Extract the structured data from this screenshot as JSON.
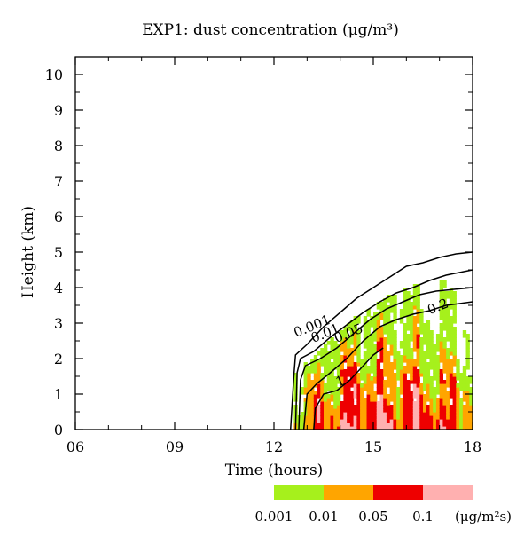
{
  "chart_data": {
    "type": "heatmap",
    "title": "EXP1: dust concentration (μg/m³)",
    "xlabel": "Time (hours)",
    "ylabel": "Height (km)",
    "xlim": [
      6,
      18
    ],
    "ylim": [
      0,
      10.5
    ],
    "x_ticks": [
      "06",
      "09",
      "12",
      "15",
      "18"
    ],
    "x_tick_values": [
      6,
      9,
      12,
      15,
      18
    ],
    "y_ticks": [
      "0",
      "1",
      "2",
      "3",
      "4",
      "5",
      "6",
      "7",
      "8",
      "9",
      "10"
    ],
    "y_tick_values": [
      0,
      1,
      2,
      3,
      4,
      5,
      6,
      7,
      8,
      9,
      10
    ],
    "contours": [
      {
        "label": "0.001",
        "label_at": [
          13.2,
          2.8
        ],
        "points": [
          [
            12.5,
            0
          ],
          [
            12.6,
            1.5
          ],
          [
            12.65,
            2.1
          ],
          [
            13.0,
            2.4
          ],
          [
            13.5,
            2.9
          ],
          [
            14.0,
            3.3
          ],
          [
            14.5,
            3.7
          ],
          [
            15.0,
            4.0
          ],
          [
            15.5,
            4.3
          ],
          [
            16.0,
            4.6
          ],
          [
            16.5,
            4.7
          ],
          [
            17.0,
            4.85
          ],
          [
            17.5,
            4.95
          ],
          [
            18.0,
            5.0
          ]
        ]
      },
      {
        "label": "0.01",
        "label_at": [
          13.6,
          2.6
        ],
        "points": [
          [
            12.65,
            0
          ],
          [
            12.7,
            1.6
          ],
          [
            12.8,
            2.0
          ],
          [
            13.2,
            2.2
          ],
          [
            13.7,
            2.6
          ],
          [
            14.2,
            2.95
          ],
          [
            14.7,
            3.3
          ],
          [
            15.2,
            3.6
          ],
          [
            15.7,
            3.85
          ],
          [
            16.2,
            4.0
          ],
          [
            16.7,
            4.2
          ],
          [
            17.2,
            4.35
          ],
          [
            18.0,
            4.5
          ]
        ]
      },
      {
        "label": "0.05",
        "label_at": [
          14.3,
          2.6
        ],
        "points": [
          [
            12.75,
            0
          ],
          [
            12.8,
            1.4
          ],
          [
            12.95,
            1.8
          ],
          [
            13.4,
            2.0
          ],
          [
            13.9,
            2.3
          ],
          [
            14.4,
            2.7
          ],
          [
            14.9,
            3.1
          ],
          [
            15.4,
            3.4
          ],
          [
            15.9,
            3.6
          ],
          [
            16.4,
            3.8
          ],
          [
            16.9,
            3.9
          ],
          [
            18.0,
            4.0
          ]
        ]
      },
      {
        "label": "0.2",
        "label_at": [
          17.0,
          3.35
        ],
        "points": [
          [
            12.9,
            0
          ],
          [
            13.0,
            1.0
          ],
          [
            13.3,
            1.3
          ],
          [
            13.7,
            1.6
          ],
          [
            14.2,
            2.0
          ],
          [
            14.7,
            2.5
          ],
          [
            15.2,
            2.9
          ],
          [
            15.7,
            3.1
          ],
          [
            16.2,
            3.25
          ],
          [
            16.7,
            3.35
          ],
          [
            17.2,
            3.5
          ],
          [
            18.0,
            3.6
          ]
        ]
      },
      {
        "label": "1",
        "label_at": [
          14.05,
          1.25
        ],
        "points": [
          [
            13.2,
            0
          ],
          [
            13.25,
            0.6
          ],
          [
            13.5,
            1.0
          ],
          [
            13.9,
            1.1
          ],
          [
            14.3,
            1.4
          ],
          [
            14.7,
            1.8
          ],
          [
            15.0,
            2.1
          ],
          [
            15.3,
            2.3
          ]
        ]
      }
    ],
    "colorbar": {
      "bins": [
        {
          "color": "#a6f01c"
        },
        {
          "color": "#ffa500"
        },
        {
          "color": "#ee0000"
        },
        {
          "color": "#ffb0b0"
        }
      ],
      "tick_labels": [
        "0.001",
        "0.01",
        "0.05",
        "0.1"
      ],
      "unit_label": "(μg/m²s)"
    },
    "grid": false
  }
}
